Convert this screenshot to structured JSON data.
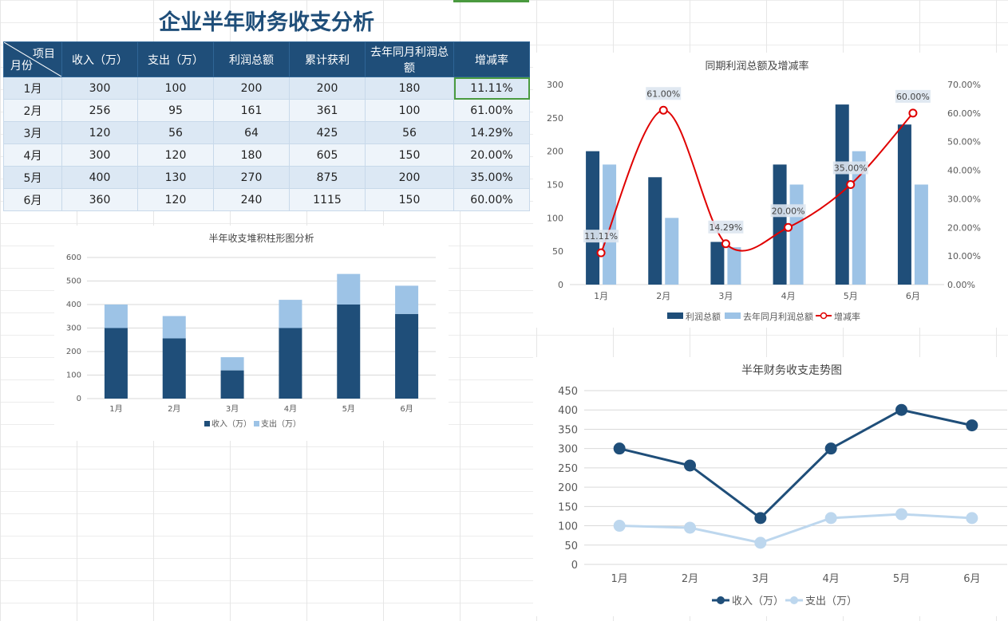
{
  "title": "企业半年财务收支分析",
  "table": {
    "corner_top": "项目",
    "corner_bottom": "月份",
    "headers": [
      "收入（万）",
      "支出（万）",
      "利润总额",
      "累计获利",
      "去年同月利润总额",
      "增减率"
    ],
    "rows": [
      [
        "1月",
        "300",
        "100",
        "200",
        "200",
        "180",
        "11.11%"
      ],
      [
        "2月",
        "256",
        "95",
        "161",
        "361",
        "100",
        "61.00%"
      ],
      [
        "3月",
        "120",
        "56",
        "64",
        "425",
        "56",
        "14.29%"
      ],
      [
        "4月",
        "300",
        "120",
        "180",
        "605",
        "150",
        "20.00%"
      ],
      [
        "5月",
        "400",
        "130",
        "270",
        "875",
        "200",
        "35.00%"
      ],
      [
        "6月",
        "360",
        "120",
        "240",
        "1115",
        "150",
        "60.00%"
      ]
    ],
    "selected_cell": "增减率 1月"
  },
  "colors": {
    "dark_blue": "#1f4e79",
    "light_blue": "#9dc3e6",
    "pale_blue": "#bdd7ee",
    "red": "#e00000",
    "header_bg": "#1f4e79",
    "selection_green": "#4a9a3f"
  },
  "chart_data": [
    {
      "id": "stacked",
      "type": "bar",
      "stacked": true,
      "title": "半年收支堆积柱形图分析",
      "categories": [
        "1月",
        "2月",
        "3月",
        "4月",
        "5月",
        "6月"
      ],
      "series": [
        {
          "name": "收入（万）",
          "values": [
            300,
            256,
            120,
            300,
            400,
            360
          ]
        },
        {
          "name": "支出（万）",
          "values": [
            100,
            95,
            56,
            120,
            130,
            120
          ]
        }
      ],
      "ylim": [
        0,
        600
      ],
      "yticks": [
        0,
        100,
        200,
        300,
        400,
        500,
        600
      ],
      "grid": true,
      "legend": "bottom"
    },
    {
      "id": "combo",
      "type": "bar",
      "title": "同期利润总额及增减率",
      "categories": [
        "1月",
        "2月",
        "3月",
        "4月",
        "5月",
        "6月"
      ],
      "series": [
        {
          "name": "利润总额",
          "values": [
            200,
            161,
            64,
            180,
            270,
            240
          ]
        },
        {
          "name": "去年同月利润总额",
          "values": [
            180,
            100,
            56,
            150,
            200,
            150
          ]
        },
        {
          "name": "增减率",
          "type": "line",
          "axis": "secondary",
          "values": [
            11.11,
            61.0,
            14.29,
            20.0,
            35.0,
            60.0
          ],
          "labels": [
            "11.11%",
            "61.00%",
            "14.29%",
            "20.00%",
            "35.00%",
            "60.00%"
          ]
        }
      ],
      "ylim": [
        0,
        300
      ],
      "yticks": [
        0,
        50,
        100,
        150,
        200,
        250,
        300
      ],
      "y2lim": [
        0,
        70
      ],
      "y2ticks": [
        "0.00%",
        "10.00%",
        "20.00%",
        "30.00%",
        "40.00%",
        "50.00%",
        "60.00%",
        "70.00%"
      ],
      "grid": false,
      "legend": "bottom"
    },
    {
      "id": "trend",
      "type": "line",
      "title": "半年财务收支走势图",
      "categories": [
        "1月",
        "2月",
        "3月",
        "4月",
        "5月",
        "6月"
      ],
      "series": [
        {
          "name": "收入（万）",
          "values": [
            300,
            256,
            120,
            300,
            400,
            360
          ]
        },
        {
          "name": "支出（万）",
          "values": [
            100,
            95,
            56,
            120,
            130,
            120
          ]
        }
      ],
      "ylim": [
        0,
        450
      ],
      "yticks": [
        0,
        50,
        100,
        150,
        200,
        250,
        300,
        350,
        400,
        450
      ],
      "grid": true,
      "legend": "bottom"
    }
  ]
}
